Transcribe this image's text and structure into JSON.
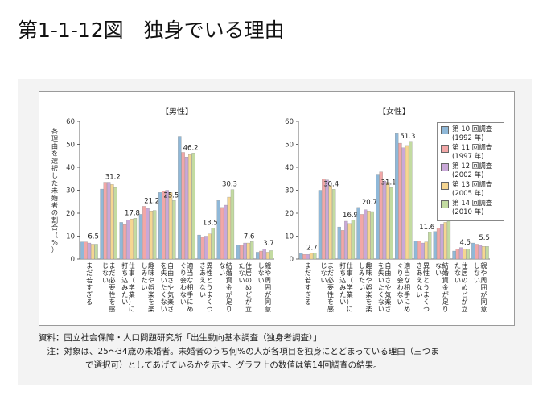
{
  "page_title": "第1-1-12図　独身でいる理由",
  "notes": {
    "source": "資料：国立社会保障・人口問題研究所「出生動向基本調査（独身者調査）」",
    "note_line1": "　注：対象は、25～34歳の未婚者。未婚者のうち何%の人が各項目を独身にとどまっている理由（三つま",
    "note_line2": "で選択可）としてあげているかを示す。グラフ上の数値は第14回調査の結果。"
  },
  "legend": [
    {
      "label": "第 10 回調査",
      "year": "(1992 年)",
      "color": "#8fb8d8"
    },
    {
      "label": "第 11 回調査",
      "year": "(1997 年)",
      "color": "#f2a7a7"
    },
    {
      "label": "第 12 回調査",
      "year": "(2002 年)",
      "color": "#c9a8d8"
    },
    {
      "label": "第 13 回調査",
      "year": "(2005 年)",
      "color": "#f6d691"
    },
    {
      "label": "第 14 回調査",
      "year": "(2010 年)",
      "color": "#c3dba1"
    }
  ],
  "chart_data": [
    {
      "type": "bar",
      "title": "【男性】",
      "ylabel": "各理由を選択した未婚者の割合（%）",
      "ylim": [
        0,
        60
      ],
      "yticks": [
        "0",
        "10",
        "20",
        "30",
        "40",
        "50",
        "60"
      ],
      "categories": [
        "まだ若すぎる",
        "まだ必要性を感じない",
        "仕事（学業）に打ち込みたい",
        "趣味や娯楽を楽しみたい",
        "自由さや気楽さを失いたくない",
        "適当な相手にめぐり会わない",
        "異性とうまくつきあえない",
        "結婚資金が足りない",
        "住居のめどが立たない",
        "親や周囲が同意しない"
      ],
      "series": [
        {
          "name": "第 10 回調査",
          "values": [
            7.5,
            30.5,
            16.0,
            19.5,
            29.0,
            53.5,
            10.5,
            25.5,
            6.0,
            3.0
          ]
        },
        {
          "name": "第 11 回調査",
          "values": [
            7.5,
            33.5,
            15.0,
            23.0,
            29.5,
            46.5,
            9.5,
            22.5,
            6.0,
            3.5
          ]
        },
        {
          "name": "第 12 回調査",
          "values": [
            7.0,
            33.5,
            17.0,
            22.0,
            30.0,
            44.5,
            10.0,
            23.5,
            7.0,
            4.5
          ]
        },
        {
          "name": "第 13 回調査",
          "values": [
            6.5,
            32.5,
            17.5,
            21.0,
            29.0,
            45.5,
            11.0,
            27.0,
            7.0,
            3.0
          ]
        },
        {
          "name": "第 14 回調査",
          "values": [
            6.5,
            31.2,
            17.8,
            21.2,
            25.5,
            46.2,
            13.5,
            30.3,
            7.6,
            3.7
          ]
        }
      ],
      "data_labels": [
        "6.5",
        "31.2",
        "17.8",
        "21.2",
        "25.5",
        "46.2",
        "13.5",
        "30.3",
        "7.6",
        "3.7"
      ]
    },
    {
      "type": "bar",
      "title": "【女性】",
      "ylim": [
        0,
        60
      ],
      "yticks": [
        "0",
        "10",
        "20",
        "30",
        "40",
        "50",
        "60"
      ],
      "categories": [
        "まだ若すぎる",
        "まだ必要性を感じない",
        "仕事（学業）に打ち込みたい",
        "趣味や娯楽を楽しみたい",
        "自由さや気楽さを失いたくない",
        "適当な相手にめぐり会わない",
        "異性とうまくつきあえない",
        "結婚資金が足りない",
        "住居のめどが立たない",
        "親や周囲が同意しない"
      ],
      "series": [
        {
          "name": "第 10 回調査",
          "values": [
            2.5,
            30.0,
            14.0,
            22.5,
            37.0,
            55.0,
            8.0,
            12.0,
            3.5,
            7.0
          ]
        },
        {
          "name": "第 11 回調査",
          "values": [
            2.0,
            35.0,
            12.5,
            19.5,
            38.0,
            50.5,
            8.0,
            13.5,
            4.5,
            6.5
          ]
        },
        {
          "name": "第 12 回調査",
          "values": [
            2.0,
            34.5,
            16.5,
            21.5,
            34.0,
            48.5,
            7.0,
            15.0,
            5.0,
            6.0
          ]
        },
        {
          "name": "第 13 回調査",
          "values": [
            2.5,
            32.0,
            15.5,
            21.0,
            33.5,
            49.5,
            7.5,
            16.0,
            4.5,
            5.5
          ]
        },
        {
          "name": "第 14 回調査",
          "values": [
            2.7,
            30.4,
            16.9,
            20.7,
            31.1,
            51.3,
            11.6,
            16.5,
            4.5,
            5.5
          ]
        }
      ],
      "data_labels": [
        "2.7",
        "30.4",
        "16.9",
        "20.7",
        "31.1",
        "51.3",
        "11.6",
        "16.5",
        "4.5",
        "5.5"
      ]
    }
  ]
}
